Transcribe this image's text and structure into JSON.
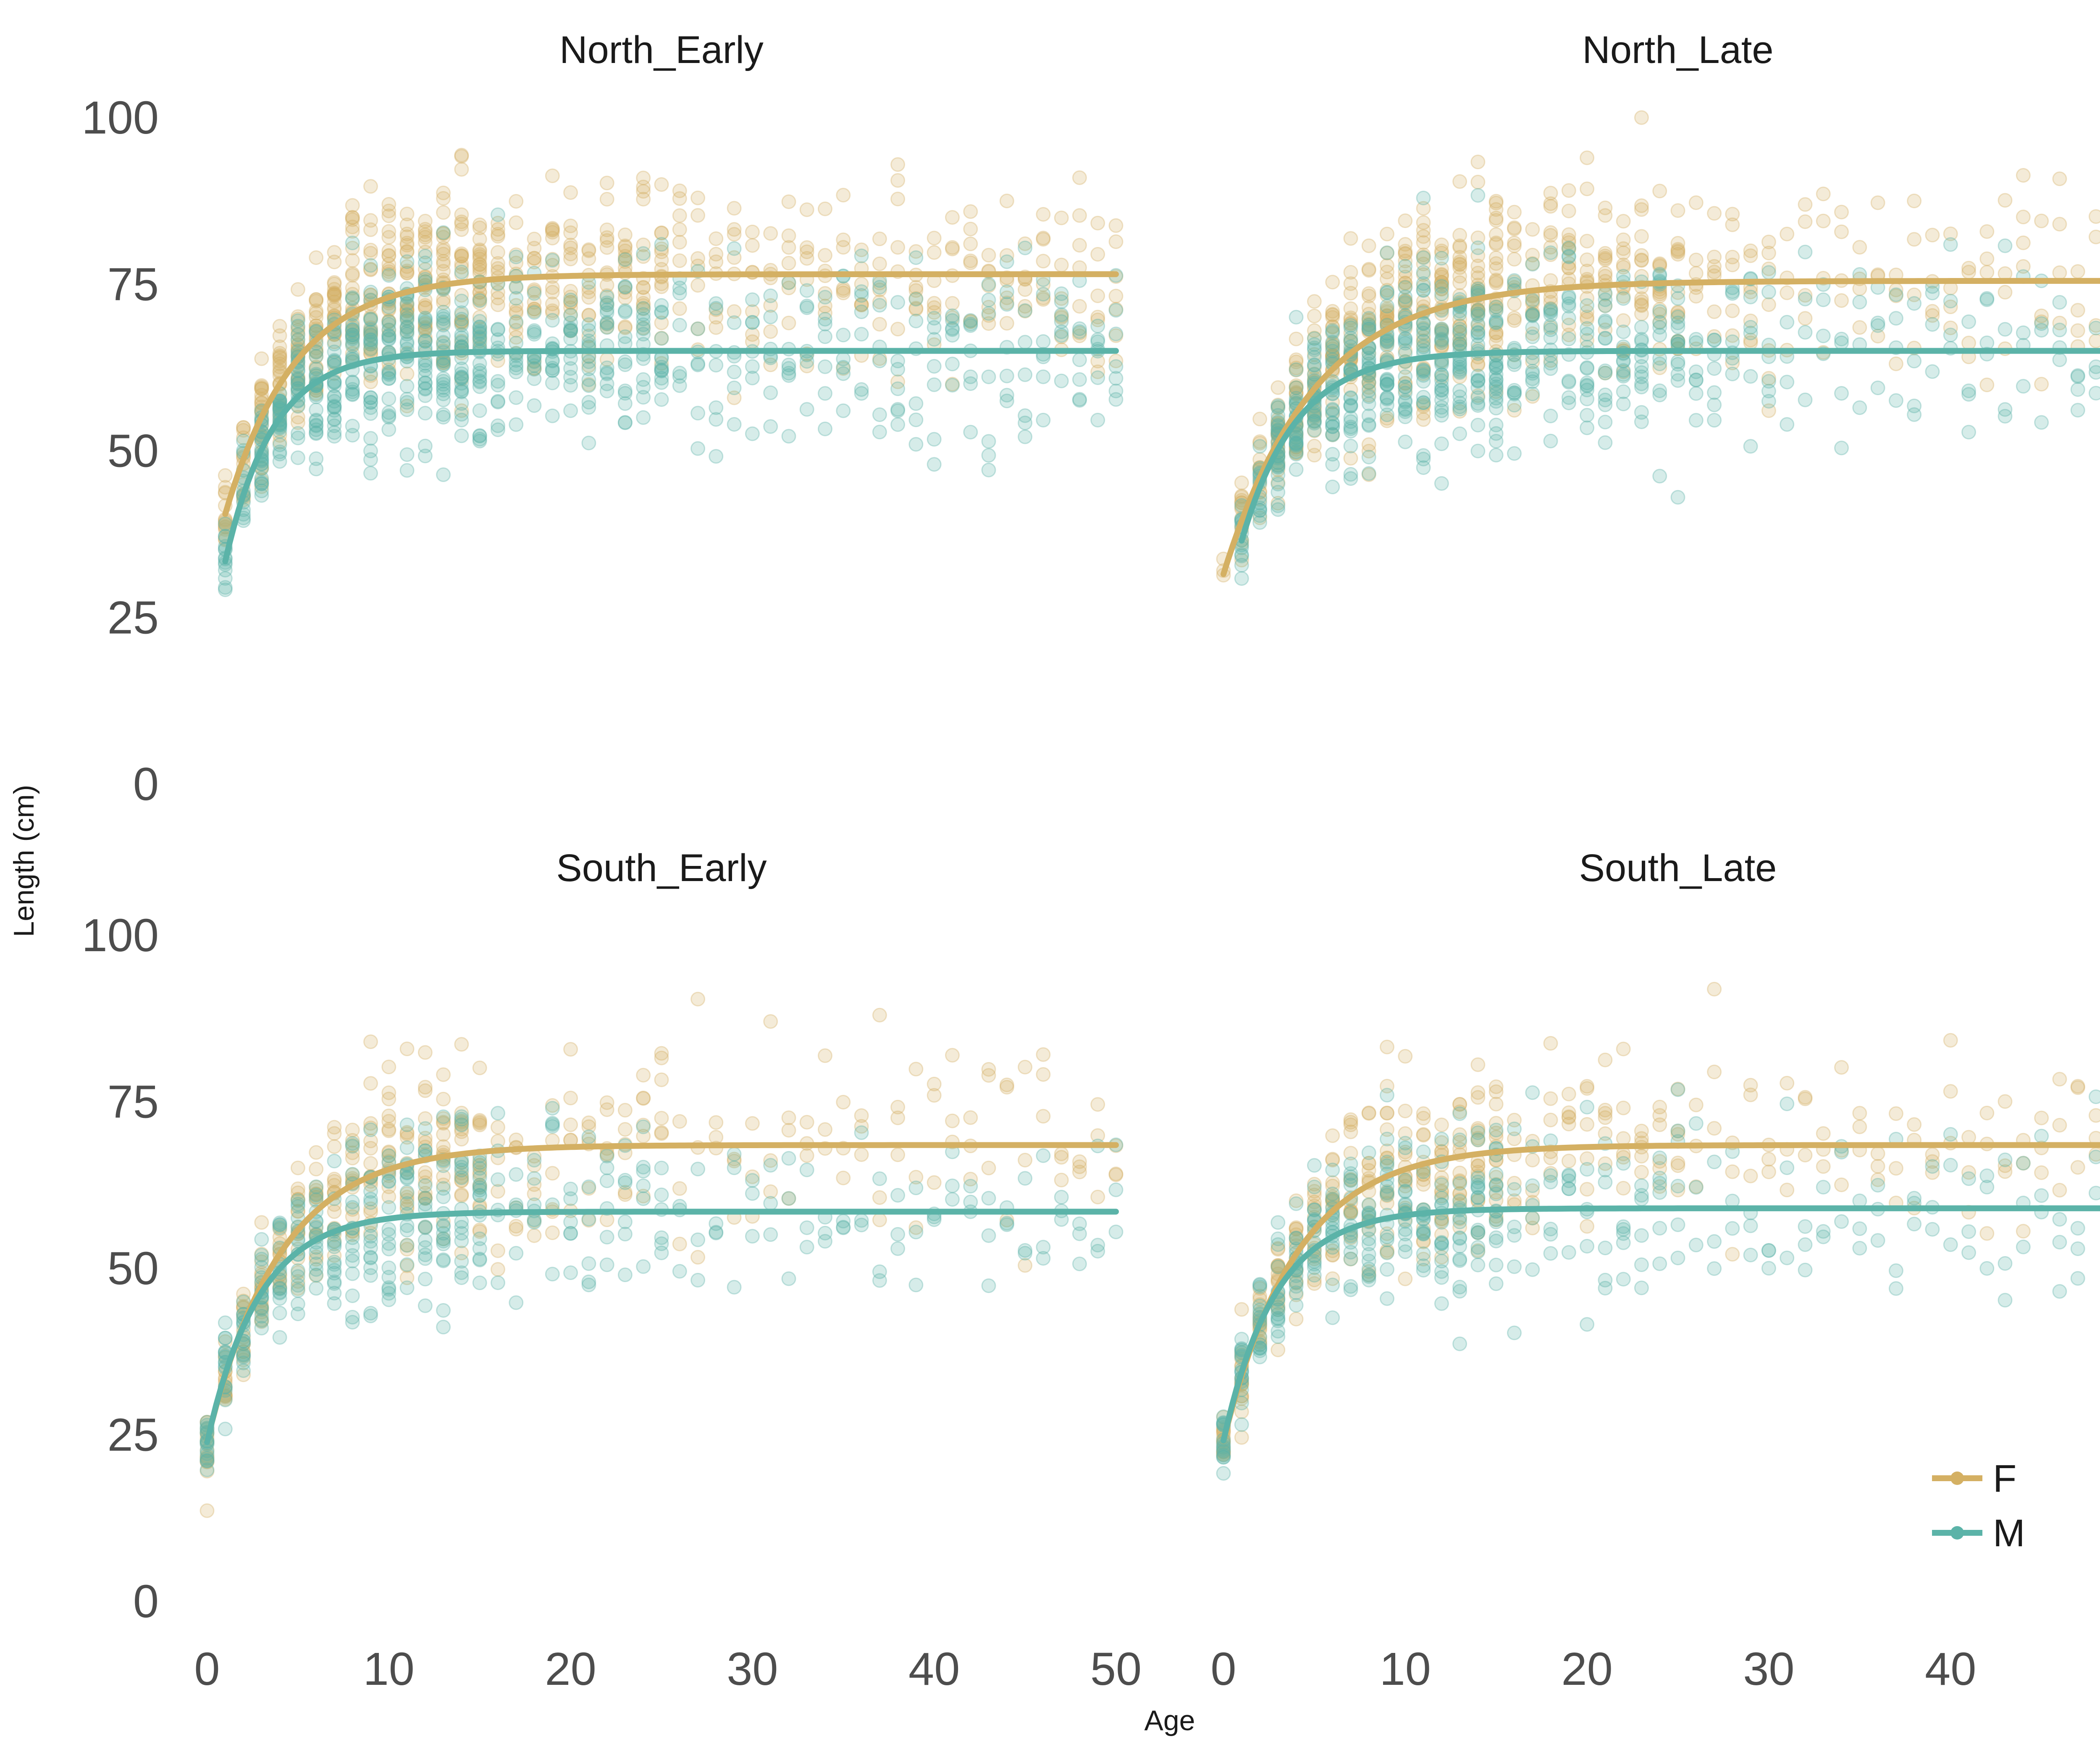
{
  "colors": {
    "F": "#D4B063",
    "M": "#5BB3A8"
  },
  "chart_data": {
    "type": "scatter",
    "xlabel": "Age",
    "ylabel": "Length (cm)",
    "xlim": [
      0,
      50
    ],
    "ylim": [
      0,
      100
    ],
    "x_ticks": [
      "0",
      "10",
      "20",
      "30",
      "40",
      "50"
    ],
    "y_ticks": [
      "0",
      "25",
      "50",
      "75",
      "100"
    ],
    "grid": false,
    "legend": {
      "placement": "bottom-right",
      "entries": [
        "F",
        "M"
      ]
    },
    "panels": [
      {
        "title": "North_Early",
        "series": [
          {
            "name": "F",
            "curve": {
              "Linf": 76.5,
              "k": 0.26,
              "t0": -1.9
            },
            "age_range": [
              1,
              50
            ]
          },
          {
            "name": "M",
            "curve": {
              "Linf": 65.0,
              "k": 0.38,
              "t0": -0.9
            },
            "age_range": [
              1,
              50
            ]
          }
        ]
      },
      {
        "title": "North_Late",
        "series": [
          {
            "name": "F",
            "curve": {
              "Linf": 75.5,
              "k": 0.2,
              "t0": -2.7
            },
            "age_range": [
              0,
              50
            ]
          },
          {
            "name": "M",
            "curve": {
              "Linf": 65.0,
              "k": 0.33,
              "t0": -1.5
            },
            "age_range": [
              1,
              50
            ]
          }
        ]
      },
      {
        "title": "South_Early",
        "series": [
          {
            "name": "F",
            "curve": {
              "Linf": 68.5,
              "k": 0.25,
              "t0": -1.73
            },
            "age_range": [
              0,
              50
            ]
          },
          {
            "name": "M",
            "curve": {
              "Linf": 58.5,
              "k": 0.35,
              "t0": -1.5
            },
            "age_range": [
              0,
              50
            ]
          }
        ]
      },
      {
        "title": "South_Late",
        "series": [
          {
            "name": "F",
            "curve": {
              "Linf": 68.5,
              "k": 0.25,
              "t0": -1.73
            },
            "age_range": [
              0,
              49
            ]
          },
          {
            "name": "M",
            "curve": {
              "Linf": 59.0,
              "k": 0.35,
              "t0": -1.5
            },
            "age_range": [
              0,
              49
            ]
          }
        ]
      }
    ]
  }
}
